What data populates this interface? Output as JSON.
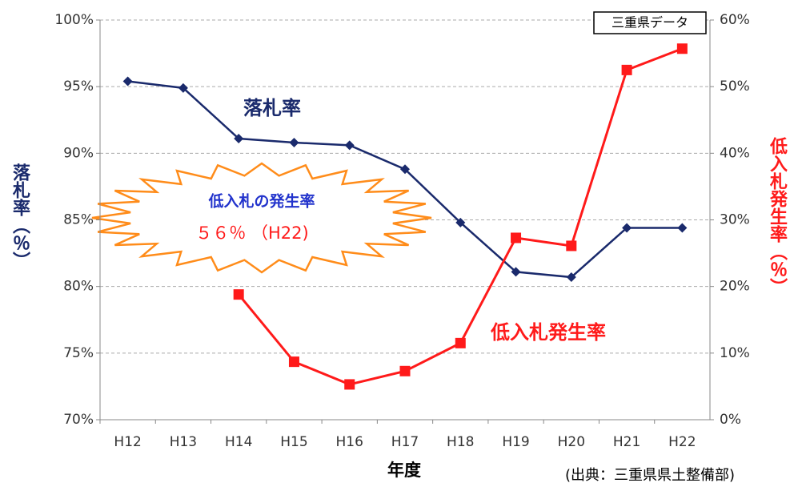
{
  "chart_data": {
    "type": "line",
    "categories": [
      "H12",
      "H13",
      "H14",
      "H15",
      "H16",
      "H17",
      "H18",
      "H19",
      "H20",
      "H21",
      "H22"
    ],
    "series": [
      {
        "name": "落札率",
        "color": "#1a2a6c",
        "marker": "diamond",
        "values": [
          95.4,
          94.9,
          91.1,
          90.8,
          90.6,
          88.8,
          84.8,
          81.1,
          80.7,
          84.4,
          84.4
        ]
      },
      {
        "name": "低入札発生率",
        "color": "#ff1a1a",
        "marker": "square",
        "axis": "y2",
        "values": [
          null,
          null,
          18.8,
          8.7,
          5.3,
          7.3,
          11.5,
          27.3,
          26.1,
          52.5,
          55.7
        ]
      }
    ],
    "ylim": [
      70,
      100
    ],
    "yticks": [
      {
        "value": 70,
        "label": "70%"
      },
      {
        "value": 75,
        "label": "75%"
      },
      {
        "value": 80,
        "label": "80%"
      },
      {
        "value": 85,
        "label": "85%"
      },
      {
        "value": 90,
        "label": "90%"
      },
      {
        "value": 95,
        "label": "95%"
      },
      {
        "value": 100,
        "label": "100%"
      }
    ],
    "y2lim": [
      0,
      60
    ],
    "y2ticks": [
      {
        "value": 0,
        "label": "0%"
      },
      {
        "value": 10,
        "label": "10%"
      },
      {
        "value": 20,
        "label": "20%"
      },
      {
        "value": 30,
        "label": "30%"
      },
      {
        "value": 40,
        "label": "40%"
      },
      {
        "value": 50,
        "label": "50%"
      },
      {
        "value": 60,
        "label": "60%"
      }
    ],
    "ylabel": "落札率（％）",
    "y2label": "低入札発生率（％）",
    "xlabel": "年度",
    "source": "(出典：三重県県土整備部)",
    "data_box": "三重県データ",
    "callout": [
      "低入札の発生率",
      "５６％ （H22)"
    ],
    "grid": true
  }
}
